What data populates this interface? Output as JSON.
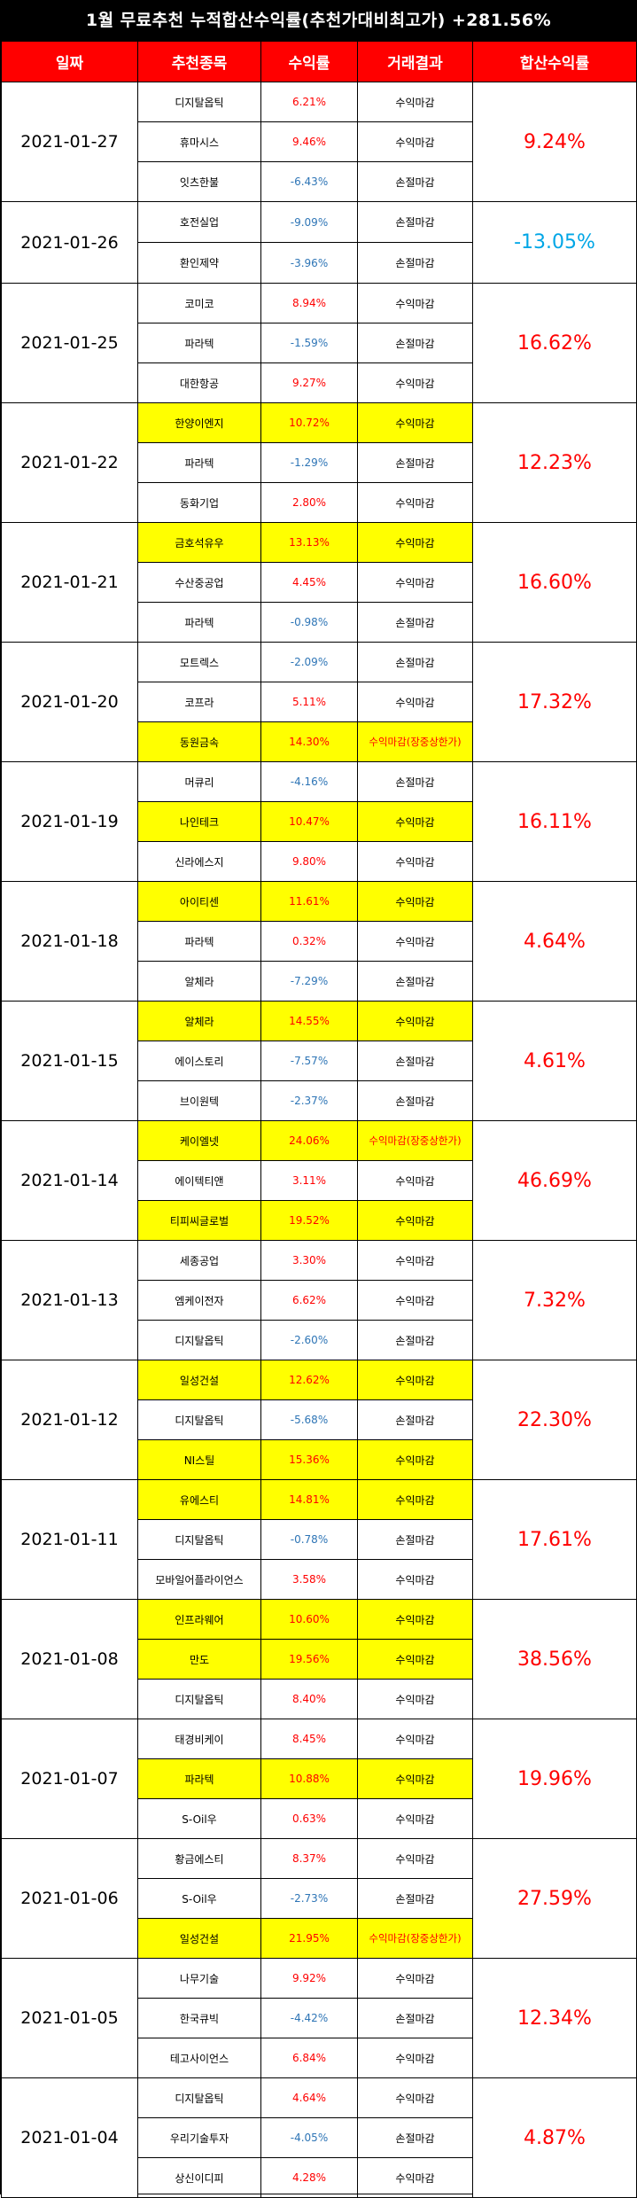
{
  "title": "1월 무료추천 누적합산수익률(추천가대비최고가) +281.56%",
  "headers": [
    "일짜",
    "추천종목",
    "수익률",
    "거래결과",
    "합산수익률"
  ],
  "groups": [
    {
      "date": "2021-01-27",
      "sum": "9.24%",
      "sum_neg": false,
      "rows": [
        {
          "stock": "디지탈옵틱",
          "rate": "6.21%",
          "neg": false,
          "result": "수익마감",
          "hl": false,
          "special": false
        },
        {
          "stock": "휴마시스",
          "rate": "9.46%",
          "neg": false,
          "result": "수익마감",
          "hl": false,
          "special": false
        },
        {
          "stock": "잇츠한불",
          "rate": "-6.43%",
          "neg": true,
          "result": "손절마감",
          "hl": false,
          "special": false
        }
      ]
    },
    {
      "date": "2021-01-26",
      "sum": "-13.05%",
      "sum_neg": true,
      "rows": [
        {
          "stock": "호전실업",
          "rate": "-9.09%",
          "neg": true,
          "result": "손절마감",
          "hl": false,
          "special": false
        },
        {
          "stock": "환인제약",
          "rate": "-3.96%",
          "neg": true,
          "result": "손절마감",
          "hl": false,
          "special": false
        }
      ]
    },
    {
      "date": "2021-01-25",
      "sum": "16.62%",
      "sum_neg": false,
      "rows": [
        {
          "stock": "코미코",
          "rate": "8.94%",
          "neg": false,
          "result": "수익마감",
          "hl": false,
          "special": false
        },
        {
          "stock": "파라텍",
          "rate": "-1.59%",
          "neg": true,
          "result": "손절마감",
          "hl": false,
          "special": false
        },
        {
          "stock": "대한항공",
          "rate": "9.27%",
          "neg": false,
          "result": "수익마감",
          "hl": false,
          "special": false
        }
      ]
    },
    {
      "date": "2021-01-22",
      "sum": "12.23%",
      "sum_neg": false,
      "rows": [
        {
          "stock": "한양이엔지",
          "rate": "10.72%",
          "neg": false,
          "result": "수익마감",
          "hl": true,
          "special": false
        },
        {
          "stock": "파라텍",
          "rate": "-1.29%",
          "neg": true,
          "result": "손절마감",
          "hl": false,
          "special": false
        },
        {
          "stock": "동화기업",
          "rate": "2.80%",
          "neg": false,
          "result": "수익마감",
          "hl": false,
          "special": false
        }
      ]
    },
    {
      "date": "2021-01-21",
      "sum": "16.60%",
      "sum_neg": false,
      "rows": [
        {
          "stock": "금호석유우",
          "rate": "13.13%",
          "neg": false,
          "result": "수익마감",
          "hl": true,
          "special": false
        },
        {
          "stock": "수산중공업",
          "rate": "4.45%",
          "neg": false,
          "result": "수익마감",
          "hl": false,
          "special": false
        },
        {
          "stock": "파라텍",
          "rate": "-0.98%",
          "neg": true,
          "result": "손절마감",
          "hl": false,
          "special": false
        }
      ]
    },
    {
      "date": "2021-01-20",
      "sum": "17.32%",
      "sum_neg": false,
      "rows": [
        {
          "stock": "모트렉스",
          "rate": "-2.09%",
          "neg": true,
          "result": "손절마감",
          "hl": false,
          "special": false
        },
        {
          "stock": "코프라",
          "rate": "5.11%",
          "neg": false,
          "result": "수익마감",
          "hl": false,
          "special": false
        },
        {
          "stock": "동원금속",
          "rate": "14.30%",
          "neg": false,
          "result": "수익마감(장중상한가)",
          "hl": true,
          "special": true
        }
      ]
    },
    {
      "date": "2021-01-19",
      "sum": "16.11%",
      "sum_neg": false,
      "rows": [
        {
          "stock": "머큐리",
          "rate": "-4.16%",
          "neg": true,
          "result": "손절마감",
          "hl": false,
          "special": false
        },
        {
          "stock": "나인테크",
          "rate": "10.47%",
          "neg": false,
          "result": "수익마감",
          "hl": true,
          "special": false
        },
        {
          "stock": "신라에스지",
          "rate": "9.80%",
          "neg": false,
          "result": "수익마감",
          "hl": false,
          "special": false
        }
      ]
    },
    {
      "date": "2021-01-18",
      "sum": "4.64%",
      "sum_neg": false,
      "rows": [
        {
          "stock": "아이티센",
          "rate": "11.61%",
          "neg": false,
          "result": "수익마감",
          "hl": true,
          "special": false
        },
        {
          "stock": "파라텍",
          "rate": "0.32%",
          "neg": false,
          "result": "수익마감",
          "hl": false,
          "special": false
        },
        {
          "stock": "알체라",
          "rate": "-7.29%",
          "neg": true,
          "result": "손절마감",
          "hl": false,
          "special": false
        }
      ]
    },
    {
      "date": "2021-01-15",
      "sum": "4.61%",
      "sum_neg": false,
      "rows": [
        {
          "stock": "알체라",
          "rate": "14.55%",
          "neg": false,
          "result": "수익마감",
          "hl": true,
          "special": false
        },
        {
          "stock": "에이스토리",
          "rate": "-7.57%",
          "neg": true,
          "result": "손절마감",
          "hl": false,
          "special": false
        },
        {
          "stock": "브이원텍",
          "rate": "-2.37%",
          "neg": true,
          "result": "손절마감",
          "hl": false,
          "special": false
        }
      ]
    },
    {
      "date": "2021-01-14",
      "sum": "46.69%",
      "sum_neg": false,
      "rows": [
        {
          "stock": "케이엘넷",
          "rate": "24.06%",
          "neg": false,
          "result": "수익마감(장중상한가)",
          "hl": true,
          "special": true
        },
        {
          "stock": "에이텍티앤",
          "rate": "3.11%",
          "neg": false,
          "result": "수익마감",
          "hl": false,
          "special": false
        },
        {
          "stock": "티피씨글로벌",
          "rate": "19.52%",
          "neg": false,
          "result": "수익마감",
          "hl": true,
          "special": false
        }
      ]
    },
    {
      "date": "2021-01-13",
      "sum": "7.32%",
      "sum_neg": false,
      "rows": [
        {
          "stock": "세종공업",
          "rate": "3.30%",
          "neg": false,
          "result": "수익마감",
          "hl": false,
          "special": false
        },
        {
          "stock": "엠케이전자",
          "rate": "6.62%",
          "neg": false,
          "result": "수익마감",
          "hl": false,
          "special": false
        },
        {
          "stock": "디지탈옵틱",
          "rate": "-2.60%",
          "neg": true,
          "result": "손절마감",
          "hl": false,
          "special": false
        }
      ]
    },
    {
      "date": "2021-01-12",
      "sum": "22.30%",
      "sum_neg": false,
      "rows": [
        {
          "stock": "일성건설",
          "rate": "12.62%",
          "neg": false,
          "result": "수익마감",
          "hl": true,
          "special": false
        },
        {
          "stock": "디지탈옵틱",
          "rate": "-5.68%",
          "neg": true,
          "result": "손절마감",
          "hl": false,
          "special": false
        },
        {
          "stock": "NI스틸",
          "rate": "15.36%",
          "neg": false,
          "result": "수익마감",
          "hl": true,
          "special": false
        }
      ]
    },
    {
      "date": "2021-01-11",
      "sum": "17.61%",
      "sum_neg": false,
      "rows": [
        {
          "stock": "유에스티",
          "rate": "14.81%",
          "neg": false,
          "result": "수익마감",
          "hl": true,
          "special": false
        },
        {
          "stock": "디지탈옵틱",
          "rate": "-0.78%",
          "neg": true,
          "result": "손절마감",
          "hl": false,
          "special": false
        },
        {
          "stock": "모바일어플라이언스",
          "rate": "3.58%",
          "neg": false,
          "result": "수익마감",
          "hl": false,
          "special": false
        }
      ]
    },
    {
      "date": "2021-01-08",
      "sum": "38.56%",
      "sum_neg": false,
      "rows": [
        {
          "stock": "인프라웨어",
          "rate": "10.60%",
          "neg": false,
          "result": "수익마감",
          "hl": true,
          "special": false
        },
        {
          "stock": "만도",
          "rate": "19.56%",
          "neg": false,
          "result": "수익마감",
          "hl": true,
          "special": false
        },
        {
          "stock": "디지탈옵틱",
          "rate": "8.40%",
          "neg": false,
          "result": "수익마감",
          "hl": false,
          "special": false
        }
      ]
    },
    {
      "date": "2021-01-07",
      "sum": "19.96%",
      "sum_neg": false,
      "rows": [
        {
          "stock": "태경비케이",
          "rate": "8.45%",
          "neg": false,
          "result": "수익마감",
          "hl": false,
          "special": false
        },
        {
          "stock": "파라텍",
          "rate": "10.88%",
          "neg": false,
          "result": "수익마감",
          "hl": true,
          "special": false
        },
        {
          "stock": "S-Oil우",
          "rate": "0.63%",
          "neg": false,
          "result": "수익마감",
          "hl": false,
          "special": false
        }
      ]
    },
    {
      "date": "2021-01-06",
      "sum": "27.59%",
      "sum_neg": false,
      "rows": [
        {
          "stock": "황금에스티",
          "rate": "8.37%",
          "neg": false,
          "result": "수익마감",
          "hl": false,
          "special": false
        },
        {
          "stock": "S-Oil우",
          "rate": "-2.73%",
          "neg": true,
          "result": "손절마감",
          "hl": false,
          "special": false
        },
        {
          "stock": "일성건설",
          "rate": "21.95%",
          "neg": false,
          "result": "수익마감(장중상한가)",
          "hl": true,
          "special": true
        }
      ]
    },
    {
      "date": "2021-01-05",
      "sum": "12.34%",
      "sum_neg": false,
      "rows": [
        {
          "stock": "나무기술",
          "rate": "9.92%",
          "neg": false,
          "result": "수익마감",
          "hl": false,
          "special": false
        },
        {
          "stock": "한국큐빅",
          "rate": "-4.42%",
          "neg": true,
          "result": "손절마감",
          "hl": false,
          "special": false
        },
        {
          "stock": "테고사이언스",
          "rate": "6.84%",
          "neg": false,
          "result": "수익마감",
          "hl": false,
          "special": false
        }
      ]
    },
    {
      "date": "2021-01-04",
      "sum": "4.87%",
      "sum_neg": false,
      "rows": [
        {
          "stock": "디지탈옵틱",
          "rate": "4.64%",
          "neg": false,
          "result": "수익마감",
          "hl": false,
          "special": false
        },
        {
          "stock": "우리기술투자",
          "rate": "-4.05%",
          "neg": true,
          "result": "손절마감",
          "hl": false,
          "special": false
        },
        {
          "stock": "상신이디피",
          "rate": "4.28%",
          "neg": false,
          "result": "수익마감",
          "hl": false,
          "special": false
        }
      ]
    }
  ]
}
